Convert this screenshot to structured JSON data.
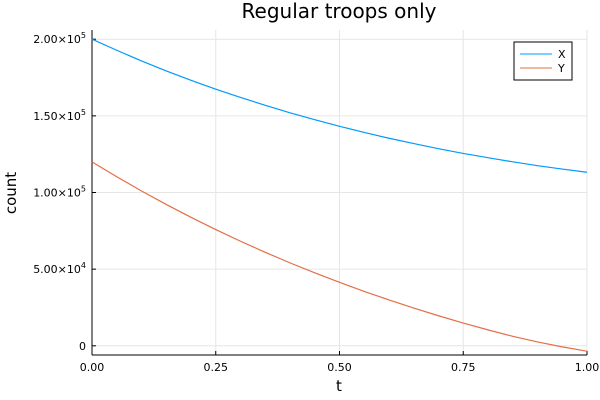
{
  "chart_data": {
    "type": "line",
    "title": "Regular troops only",
    "xlabel": "t",
    "ylabel": "count",
    "xlim": [
      0,
      1
    ],
    "ylim": [
      -6000,
      206000
    ],
    "grid": true,
    "legend_position": "top-right",
    "x_ticks": [
      0,
      0.25,
      0.5,
      0.75,
      1.0
    ],
    "x_tick_labels": [
      "0.00",
      "0.25",
      "0.50",
      "0.75",
      "1.00"
    ],
    "y_ticks": [
      {
        "value": 0,
        "mantissa": "0",
        "exponent": ""
      },
      {
        "value": 50000,
        "mantissa": "5.00×10",
        "exponent": "4"
      },
      {
        "value": 100000,
        "mantissa": "1.00×10",
        "exponent": "5"
      },
      {
        "value": 150000,
        "mantissa": "1.50×10",
        "exponent": "5"
      },
      {
        "value": 200000,
        "mantissa": "2.00×10",
        "exponent": "5"
      }
    ],
    "series": [
      {
        "name": "X",
        "color": "#009AFA",
        "x": [
          0,
          0.05,
          0.1,
          0.15,
          0.2,
          0.25,
          0.3,
          0.35,
          0.4,
          0.45,
          0.5,
          0.55,
          0.6,
          0.65,
          0.7,
          0.75,
          0.8,
          0.85,
          0.9,
          0.95,
          1.0
        ],
        "y": [
          200000,
          192800,
          185800,
          179300,
          173200,
          167400,
          162000,
          156900,
          152000,
          147500,
          143200,
          139200,
          135400,
          131900,
          128600,
          125500,
          122700,
          120000,
          117500,
          115300,
          113200
        ]
      },
      {
        "name": "Y",
        "color": "#E36F47",
        "x": [
          0,
          0.05,
          0.1,
          0.15,
          0.2,
          0.25,
          0.3,
          0.35,
          0.4,
          0.45,
          0.5,
          0.55,
          0.6,
          0.65,
          0.7,
          0.75,
          0.8,
          0.85,
          0.9,
          0.95,
          1.0
        ],
        "y": [
          120000,
          110300,
          101000,
          92200,
          83800,
          75800,
          68200,
          61000,
          54100,
          47600,
          41400,
          35500,
          29900,
          24600,
          19600,
          14800,
          10400,
          6200,
          2500,
          -700,
          -3500
        ]
      }
    ]
  }
}
